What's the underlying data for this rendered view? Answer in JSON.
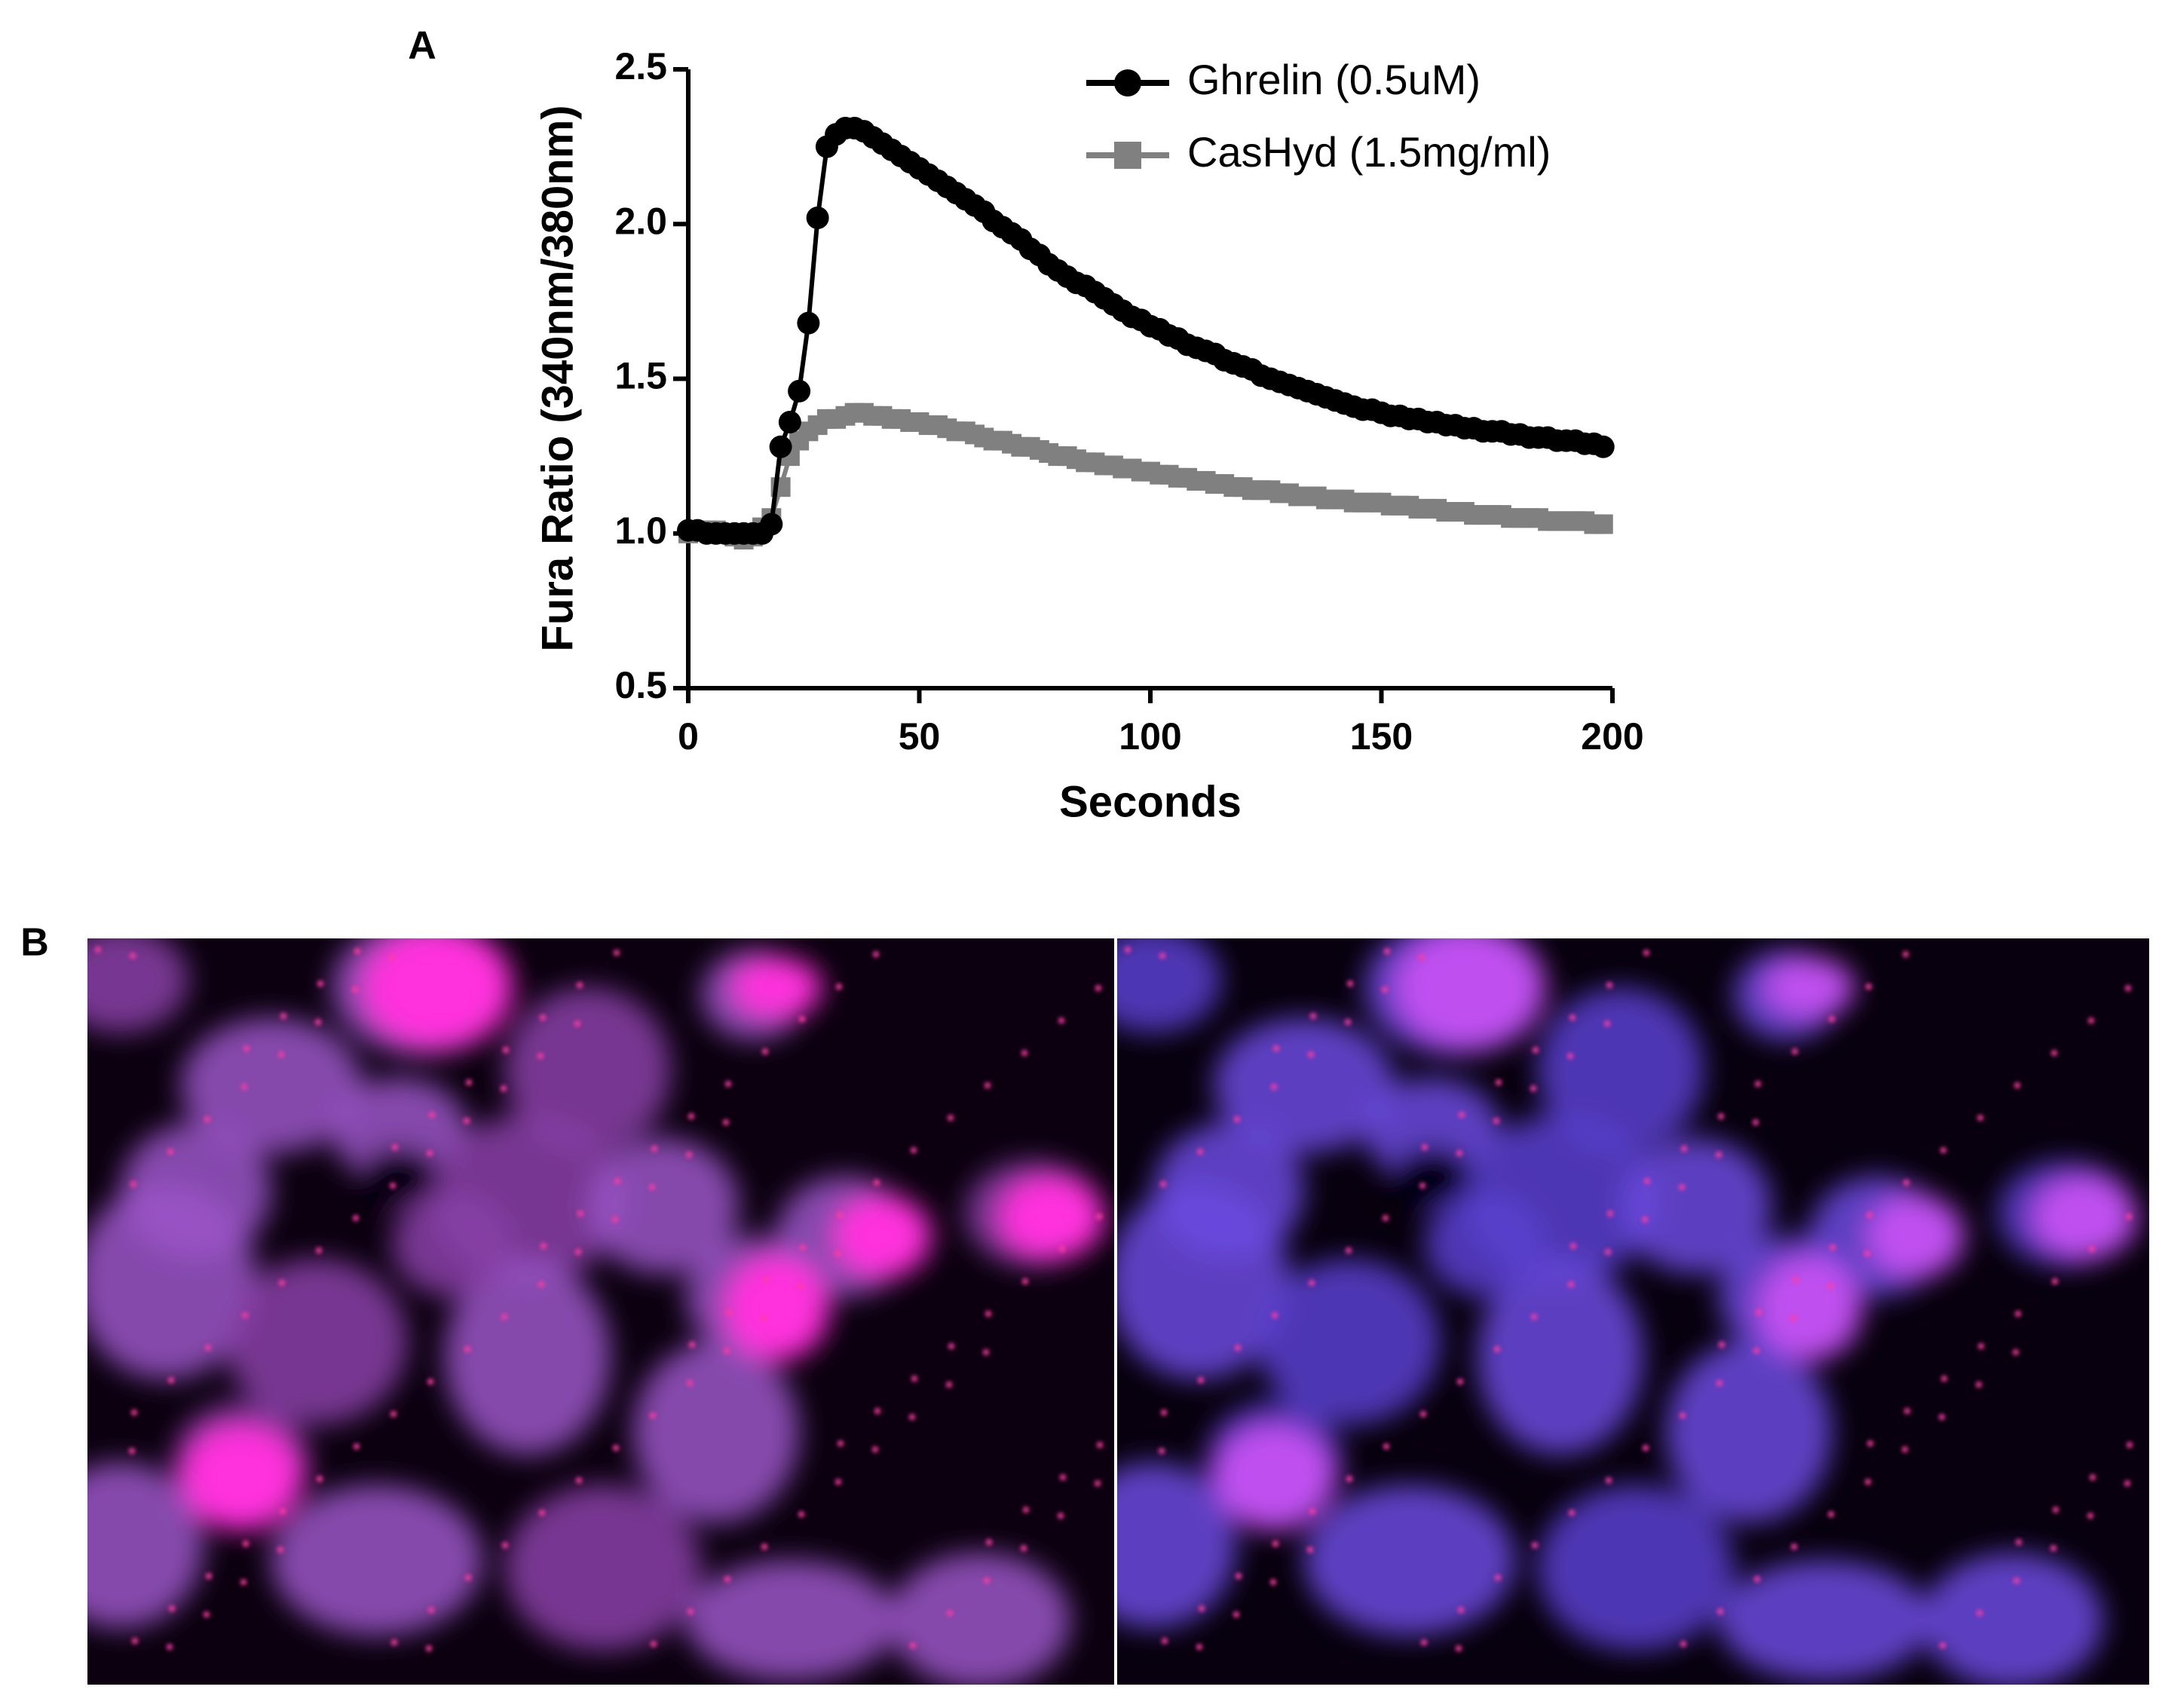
{
  "panel_a_label": "A",
  "panel_b_label": "B",
  "chart_data": {
    "type": "line",
    "xlabel": "Seconds",
    "ylabel": "Fura Ratio (340nm/380nm)",
    "x": [
      0,
      2,
      4,
      6,
      8,
      10,
      12,
      14,
      16,
      18,
      20,
      22,
      24,
      26,
      28,
      30,
      32,
      34,
      36,
      38,
      40,
      42,
      44,
      46,
      48,
      50,
      52,
      54,
      56,
      58,
      60,
      62,
      64,
      66,
      68,
      70,
      72,
      74,
      76,
      78,
      80,
      82,
      84,
      86,
      88,
      90,
      92,
      94,
      96,
      98,
      100,
      102,
      104,
      106,
      108,
      110,
      112,
      114,
      116,
      118,
      120,
      122,
      124,
      126,
      128,
      130,
      132,
      134,
      136,
      138,
      140,
      142,
      144,
      146,
      148,
      150,
      152,
      154,
      156,
      158,
      160,
      162,
      164,
      166,
      168,
      170,
      172,
      174,
      176,
      178,
      180,
      182,
      184,
      186,
      188,
      190,
      192,
      194,
      196,
      198
    ],
    "series": [
      {
        "name": "Ghrelin (0.5uM)",
        "color": "#000000",
        "marker": "circle",
        "values": [
          1.01,
          1.01,
          1.0,
          1.0,
          1.0,
          1.0,
          1.0,
          1.0,
          1.0,
          1.03,
          1.28,
          1.36,
          1.46,
          1.68,
          2.02,
          2.25,
          2.29,
          2.31,
          2.31,
          2.3,
          2.28,
          2.26,
          2.24,
          2.22,
          2.2,
          2.18,
          2.16,
          2.14,
          2.12,
          2.1,
          2.08,
          2.06,
          2.04,
          2.01,
          1.99,
          1.97,
          1.95,
          1.92,
          1.9,
          1.87,
          1.85,
          1.83,
          1.81,
          1.8,
          1.78,
          1.76,
          1.74,
          1.72,
          1.7,
          1.69,
          1.67,
          1.66,
          1.64,
          1.63,
          1.61,
          1.6,
          1.59,
          1.58,
          1.56,
          1.55,
          1.54,
          1.53,
          1.51,
          1.5,
          1.49,
          1.48,
          1.47,
          1.46,
          1.45,
          1.44,
          1.43,
          1.42,
          1.41,
          1.4,
          1.4,
          1.39,
          1.38,
          1.38,
          1.37,
          1.37,
          1.36,
          1.36,
          1.35,
          1.35,
          1.34,
          1.34,
          1.33,
          1.33,
          1.33,
          1.32,
          1.32,
          1.31,
          1.31,
          1.31,
          1.3,
          1.3,
          1.3,
          1.29,
          1.29,
          1.28
        ]
      },
      {
        "name": "CasHyd (1.5mg/ml)",
        "color": "#808080",
        "marker": "square",
        "values": [
          1.0,
          1.01,
          1.01,
          1.01,
          1.0,
          0.99,
          0.98,
          0.99,
          1.02,
          1.05,
          1.15,
          1.25,
          1.3,
          1.33,
          1.35,
          1.37,
          1.37,
          1.38,
          1.39,
          1.39,
          1.38,
          1.38,
          1.37,
          1.37,
          1.36,
          1.36,
          1.35,
          1.35,
          1.34,
          1.33,
          1.33,
          1.32,
          1.31,
          1.3,
          1.3,
          1.29,
          1.28,
          1.28,
          1.27,
          1.26,
          1.25,
          1.25,
          1.24,
          1.23,
          1.23,
          1.22,
          1.22,
          1.21,
          1.21,
          1.2,
          1.2,
          1.19,
          1.19,
          1.18,
          1.18,
          1.17,
          1.17,
          1.16,
          1.16,
          1.15,
          1.15,
          1.14,
          1.14,
          1.14,
          1.13,
          1.13,
          1.12,
          1.12,
          1.12,
          1.11,
          1.11,
          1.11,
          1.1,
          1.1,
          1.1,
          1.1,
          1.09,
          1.09,
          1.09,
          1.08,
          1.08,
          1.08,
          1.07,
          1.07,
          1.07,
          1.06,
          1.06,
          1.06,
          1.06,
          1.05,
          1.05,
          1.05,
          1.05,
          1.04,
          1.04,
          1.04,
          1.04,
          1.04,
          1.03,
          1.03
        ]
      }
    ],
    "xlim": [
      0,
      200
    ],
    "xticks": [
      0,
      50,
      100,
      150,
      200
    ],
    "ylim": [
      0.5,
      2.5
    ],
    "yticks": [
      0.5,
      {
        "value": 1,
        "label": "1.0"
      },
      1.5,
      {
        "value": 2,
        "label": "2.0"
      },
      2.5
    ],
    "legend": "top-right"
  }
}
